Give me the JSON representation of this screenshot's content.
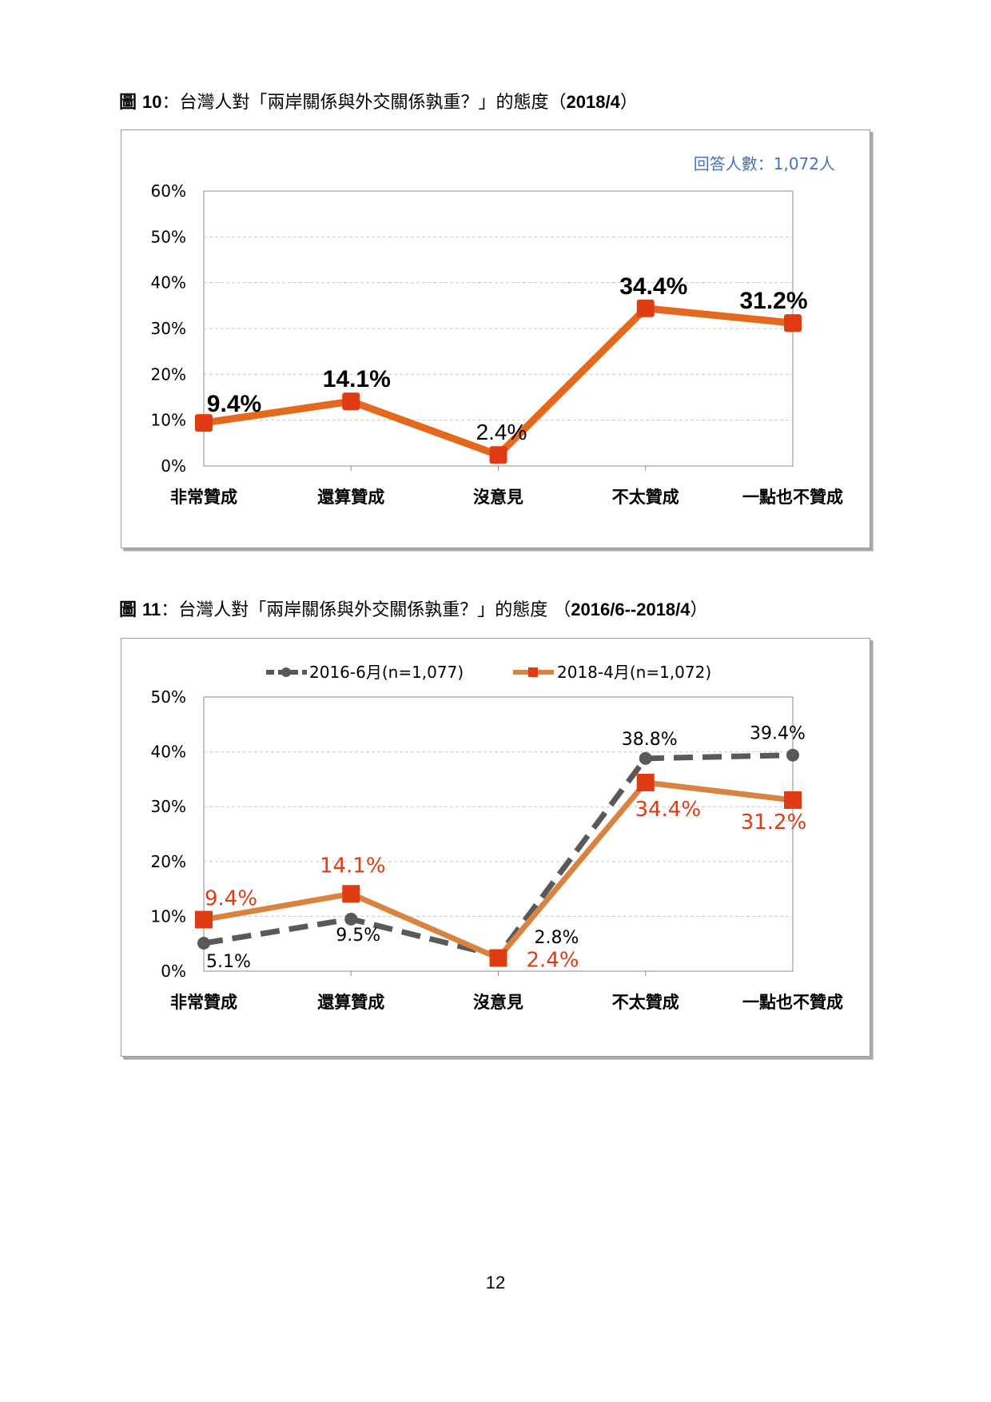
{
  "page_number": "12",
  "figures": [
    {
      "caption_prefix": "圖",
      "caption_number": "10",
      "caption_text": "：台灣人對「兩岸關係與外交關係孰重？」的態度（",
      "caption_period": "2018/4",
      "caption_suffix": "）"
    },
    {
      "caption_prefix": "圖",
      "caption_number": "11",
      "caption_text": "：台灣人對「兩岸關係與外交關係孰重？」的態度 （",
      "caption_period": "2016/6--2018/4",
      "caption_suffix": "）"
    }
  ],
  "colors": {
    "orange": "#E4691F",
    "red_label": "#E03C14",
    "marker": "#E03C14",
    "dark_gray": "#595959",
    "light_orange": "#D98341",
    "blue": "#4472C4"
  },
  "chart_data": [
    {
      "type": "line",
      "categories": [
        "非常贊成",
        "還算贊成",
        "沒意見",
        "不太贊成",
        "一點也不贊成"
      ],
      "series": [
        {
          "values": [
            9.4,
            14.1,
            2.4,
            34.4,
            31.2
          ],
          "labels": [
            "9.4%",
            "14.1%",
            "2.4%",
            "34.4%",
            "31.2%"
          ]
        }
      ],
      "annotation": "回答人數：1,072人",
      "ylim": [
        0,
        60
      ],
      "yticks": [
        "0%",
        "10%",
        "20%",
        "30%",
        "40%",
        "50%",
        "60%"
      ],
      "grid": true
    },
    {
      "type": "line",
      "categories": [
        "非常贊成",
        "還算贊成",
        "沒意見",
        "不太贊成",
        "一點也不贊成"
      ],
      "series": [
        {
          "name": "2016-6月(n=1,077)",
          "values": [
            5.1,
            9.5,
            2.8,
            38.8,
            39.4
          ],
          "labels": [
            "5.1%",
            "9.5%",
            "2.8%",
            "38.8%",
            "39.4%"
          ]
        },
        {
          "name": "2018-4月(n=1,072)",
          "values": [
            9.4,
            14.1,
            2.4,
            34.4,
            31.2
          ],
          "labels": [
            "9.4%",
            "14.1%",
            "2.4%",
            "34.4%",
            "31.2%"
          ]
        }
      ],
      "legend": "top",
      "ylim": [
        0,
        50
      ],
      "yticks": [
        "0%",
        "10%",
        "20%",
        "30%",
        "40%",
        "50%"
      ],
      "grid": true
    }
  ]
}
